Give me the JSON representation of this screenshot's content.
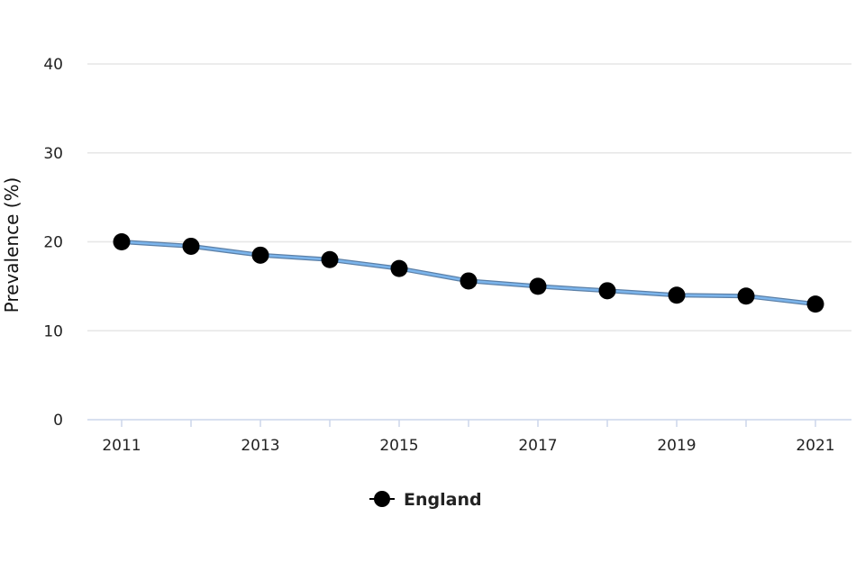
{
  "chart_data": {
    "type": "line",
    "title": "",
    "xlabel": "",
    "ylabel": "Prevalence (%)",
    "ylim": [
      0,
      40
    ],
    "yticks": [
      0,
      10,
      20,
      30,
      40
    ],
    "xticks": [
      2011,
      2013,
      2015,
      2017,
      2019,
      2021
    ],
    "x": [
      2011,
      2012,
      2013,
      2014,
      2015,
      2016,
      2017,
      2018,
      2019,
      2020,
      2021
    ],
    "series": [
      {
        "name": "England",
        "values": [
          20.0,
          19.5,
          18.5,
          18.0,
          17.0,
          15.6,
          15.0,
          14.5,
          14.0,
          13.9,
          13.0
        ],
        "line_color": "#7cb5ec",
        "marker_color": "#000000"
      }
    ],
    "grid": true,
    "legend": "bottom-center",
    "gridline_color": "#e6e6e6",
    "axis_color": "#ccd6eb"
  }
}
